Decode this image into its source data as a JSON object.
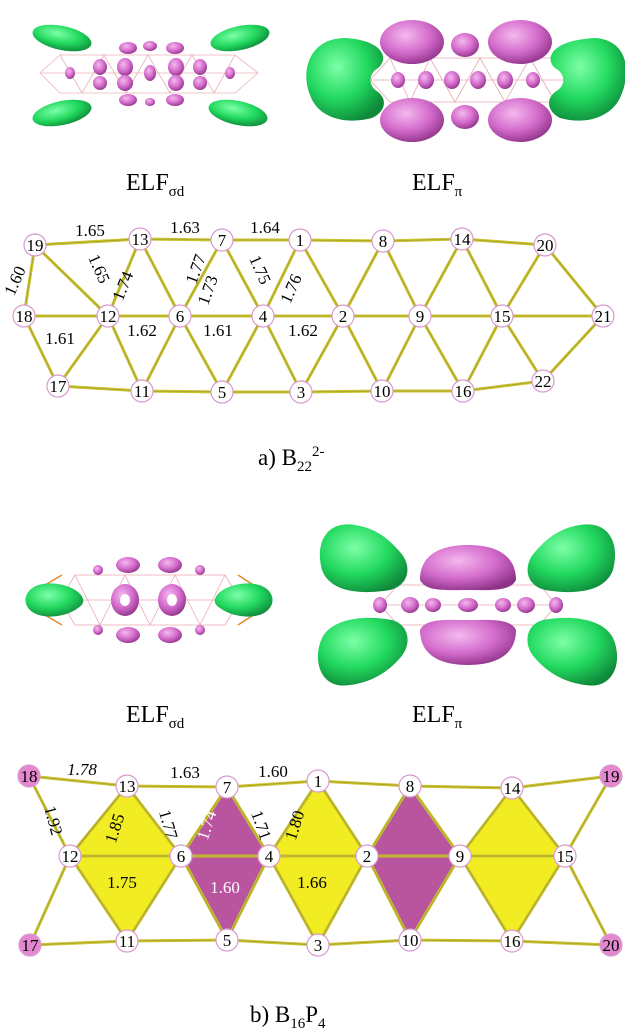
{
  "panel_a": {
    "elf_sigma_label": {
      "main": "ELF",
      "sub": "σd"
    },
    "elf_pi_label": {
      "main": "ELF",
      "sub": "π"
    },
    "caption": {
      "prefix": "a) B",
      "sub": "22",
      "sup": "2-"
    },
    "nodes": [
      "1",
      "2",
      "3",
      "4",
      "5",
      "6",
      "7",
      "8",
      "9",
      "10",
      "11",
      "12",
      "13",
      "14",
      "15",
      "16",
      "17",
      "18",
      "19",
      "20",
      "21",
      "22"
    ],
    "bond_lengths": [
      "1.65",
      "1.63",
      "1.64",
      "1.60",
      "1.65",
      "1.74",
      "1.77",
      "1.73",
      "1.75",
      "1.76",
      "1.61",
      "1.62",
      "1.61",
      "1.62"
    ]
  },
  "panel_b": {
    "elf_sigma_label": {
      "main": "ELF",
      "sub": "σd"
    },
    "elf_pi_label": {
      "main": "ELF",
      "sub": "π"
    },
    "caption": {
      "prefix": "b) B",
      "sub": "16",
      "mid": "P",
      "sub2": "4"
    },
    "nodes": [
      "1",
      "2",
      "3",
      "4",
      "5",
      "6",
      "7",
      "8",
      "9",
      "10",
      "11",
      "12",
      "13",
      "14",
      "15",
      "16",
      "17",
      "18",
      "19",
      "20"
    ],
    "bond_lengths": [
      "1.78",
      "1.63",
      "1.60",
      "1.92",
      "1.85",
      "1.77",
      "1.74",
      "1.71",
      "1.80",
      "1.75",
      "1.60",
      "1.66"
    ]
  },
  "colors": {
    "bond": "#c9c232",
    "triangle_yellow": "#f2ec22",
    "triangle_magenta": "#b8559e",
    "phosphorus_atom": "#e388cf",
    "elf_green": "#2ee06a",
    "elf_magenta": "#d76fd0"
  }
}
